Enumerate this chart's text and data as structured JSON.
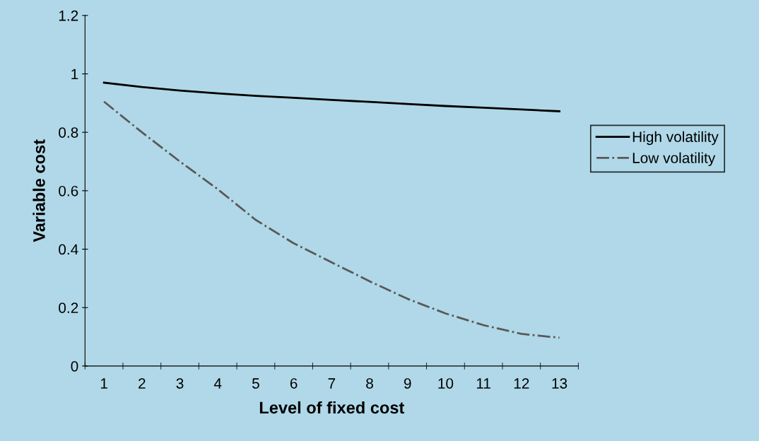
{
  "chart_data": {
    "type": "line",
    "xlabel": "Level of fixed cost",
    "ylabel": "Variable cost",
    "categories": [
      "1",
      "2",
      "3",
      "4",
      "5",
      "6",
      "7",
      "8",
      "9",
      "10",
      "11",
      "12",
      "13"
    ],
    "series": [
      {
        "name": "High volatility",
        "color": "#000000",
        "line_style": "solid",
        "values": [
          0.97,
          0.955,
          0.943,
          0.933,
          0.925,
          0.918,
          0.911,
          0.904,
          0.897,
          0.89,
          0.884,
          0.878,
          0.872
        ]
      },
      {
        "name": "Low volatility",
        "color": "#595959",
        "line_style": "dashed",
        "values": [
          0.905,
          0.8,
          0.7,
          0.605,
          0.5,
          0.42,
          0.355,
          0.29,
          0.23,
          0.18,
          0.14,
          0.11,
          0.097
        ]
      }
    ],
    "ylim": [
      0,
      1.2
    ],
    "yticks": [
      0,
      0.2,
      0.4,
      0.6,
      0.8,
      1,
      1.2
    ],
    "grid": false,
    "legend": "right",
    "marker": "none"
  }
}
